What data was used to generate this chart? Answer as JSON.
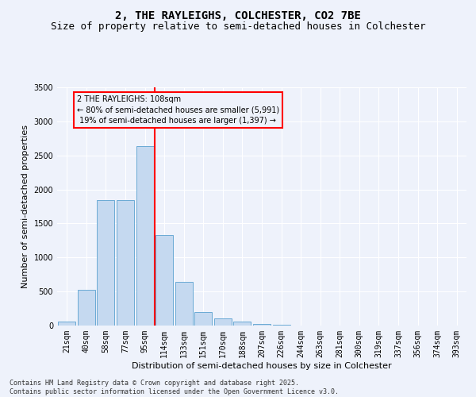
{
  "title1": "2, THE RAYLEIGHS, COLCHESTER, CO2 7BE",
  "title2": "Size of property relative to semi-detached houses in Colchester",
  "xlabel": "Distribution of semi-detached houses by size in Colchester",
  "ylabel": "Number of semi-detached properties",
  "footnote": "Contains HM Land Registry data © Crown copyright and database right 2025.\nContains public sector information licensed under the Open Government Licence v3.0.",
  "categories": [
    "21sqm",
    "40sqm",
    "58sqm",
    "77sqm",
    "95sqm",
    "114sqm",
    "133sqm",
    "151sqm",
    "170sqm",
    "188sqm",
    "207sqm",
    "226sqm",
    "244sqm",
    "263sqm",
    "281sqm",
    "300sqm",
    "319sqm",
    "337sqm",
    "356sqm",
    "374sqm",
    "393sqm"
  ],
  "values": [
    55,
    530,
    1840,
    1840,
    2640,
    1330,
    640,
    200,
    110,
    55,
    25,
    10,
    5,
    3,
    2,
    1,
    1,
    0,
    0,
    0,
    0
  ],
  "bar_color": "#c5d9f0",
  "bar_edge_color": "#6aaad4",
  "property_label": "2 THE RAYLEIGHS: 108sqm",
  "pct_smaller": 80,
  "n_smaller": 5991,
  "pct_larger": 19,
  "n_larger": 1397,
  "vline_color": "red",
  "vline_index": 4.5,
  "annotation_box_color": "red",
  "ylim": [
    0,
    3500
  ],
  "yticks": [
    0,
    500,
    1000,
    1500,
    2000,
    2500,
    3000,
    3500
  ],
  "background_color": "#eef2fb",
  "grid_color": "#ffffff",
  "title_fontsize": 10,
  "subtitle_fontsize": 9,
  "axis_label_fontsize": 8,
  "tick_fontsize": 7,
  "annotation_fontsize": 7,
  "footnote_fontsize": 6
}
